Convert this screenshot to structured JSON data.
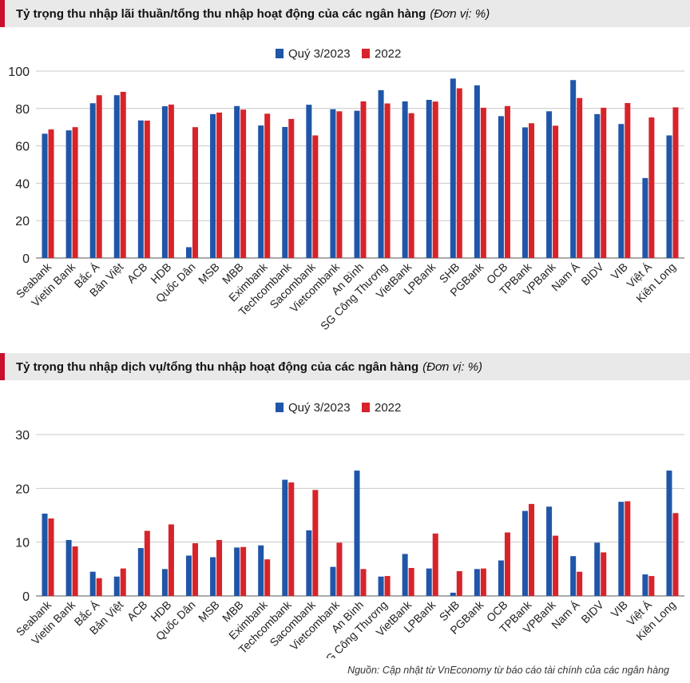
{
  "colors": {
    "series1": "#1f56a8",
    "series2": "#d8232a",
    "grid": "#c8c8c8",
    "axis": "#555555"
  },
  "charts": [
    {
      "title": "Tỷ trọng thu nhập lãi thuần/tổng thu nhập hoạt động của các ngân hàng",
      "unit": "(Đơn vị: %)"
    },
    {
      "title": "Tỷ trọng thu nhập dịch vụ/tổng thu nhập hoạt động của các ngân hàng",
      "unit": "(Đơn vị: %)"
    }
  ],
  "source": "Nguồn: Cập nhật từ VnEconomy từ báo cáo tài chính của các ngân hàng",
  "chart_data": [
    {
      "type": "bar",
      "title": "Tỷ trọng thu nhập lãi thuần/tổng thu nhập hoạt động của các ngân hàng",
      "unit": "%",
      "categories": [
        "Seabank",
        "Vietin Bank",
        "Bắc Á",
        "Bản Việt",
        "ACB",
        "HDB",
        "Quốc Dân",
        "MSB",
        "MBB",
        "Eximbank",
        "Techcombank",
        "Sacombank",
        "Vietcombank",
        "An Bình",
        "SG Công Thương",
        "VietBank",
        "LPBank",
        "SHB",
        "PGBank",
        "OCB",
        "TPBank",
        "VPBank",
        "Nam Á",
        "BIDV",
        "VIB",
        "Việt Á",
        "Kiên Long"
      ],
      "series": [
        {
          "name": "Quý 3/2023",
          "values": [
            66.5,
            68.3,
            82.8,
            87.1,
            73.6,
            81.2,
            5.8,
            77.0,
            81.3,
            70.9,
            70.1,
            82.0,
            79.6,
            78.8,
            89.8,
            83.8,
            84.6,
            96.0,
            92.4,
            75.9,
            69.9,
            78.5,
            95.2,
            77.0,
            71.7,
            42.8,
            65.6
          ]
        },
        {
          "name": "2022",
          "values": [
            68.8,
            70.0,
            87.1,
            88.9,
            73.5,
            82.1,
            70.0,
            77.8,
            79.4,
            77.2,
            74.4,
            65.6,
            78.5,
            83.8,
            82.7,
            77.5,
            83.7,
            90.8,
            80.4,
            81.3,
            72.1,
            70.8,
            85.6,
            80.4,
            82.9,
            75.2,
            80.6
          ]
        }
      ],
      "ylim": [
        0,
        100
      ],
      "yticks": [
        0,
        20,
        40,
        60,
        80,
        100
      ],
      "legend": "top-center",
      "grid": true
    },
    {
      "type": "bar",
      "title": "Tỷ trọng thu nhập dịch vụ/tổng thu nhập hoạt động của các ngân hàng",
      "unit": "%",
      "categories": [
        "Seabank",
        "Vietin Bank",
        "Bắc Á",
        "Bản Việt",
        "ACB",
        "HDB",
        "Quốc Dân",
        "MSB",
        "MBB",
        "Eximbank",
        "Techcombank",
        "Sacombank",
        "Vietcombank",
        "An Bình",
        "SG Công Thương",
        "VietBank",
        "LPBank",
        "SHB",
        "PGBank",
        "OCB",
        "TPBank",
        "VPBank",
        "Nam Á",
        "BIDV",
        "VIB",
        "Việt Á",
        "Kiên Long"
      ],
      "series": [
        {
          "name": "Quý 3/2023",
          "values": [
            15.3,
            10.4,
            4.5,
            3.6,
            8.9,
            5.0,
            7.5,
            7.2,
            9.0,
            9.4,
            21.6,
            12.2,
            5.4,
            23.3,
            3.6,
            7.8,
            5.1,
            0.6,
            5.0,
            6.6,
            15.8,
            16.6,
            7.4,
            9.9,
            17.5,
            4.0,
            23.3
          ]
        },
        {
          "name": "2022",
          "values": [
            14.4,
            9.2,
            3.3,
            5.1,
            12.1,
            13.3,
            9.8,
            10.4,
            9.1,
            6.8,
            21.1,
            19.7,
            9.9,
            5.0,
            3.7,
            5.2,
            11.6,
            4.6,
            5.1,
            11.8,
            17.1,
            11.2,
            4.5,
            8.1,
            17.6,
            3.7,
            15.4
          ]
        }
      ],
      "ylim": [
        0,
        30
      ],
      "yticks": [
        0,
        10,
        20,
        30
      ],
      "legend": "top-center",
      "grid": true
    }
  ]
}
